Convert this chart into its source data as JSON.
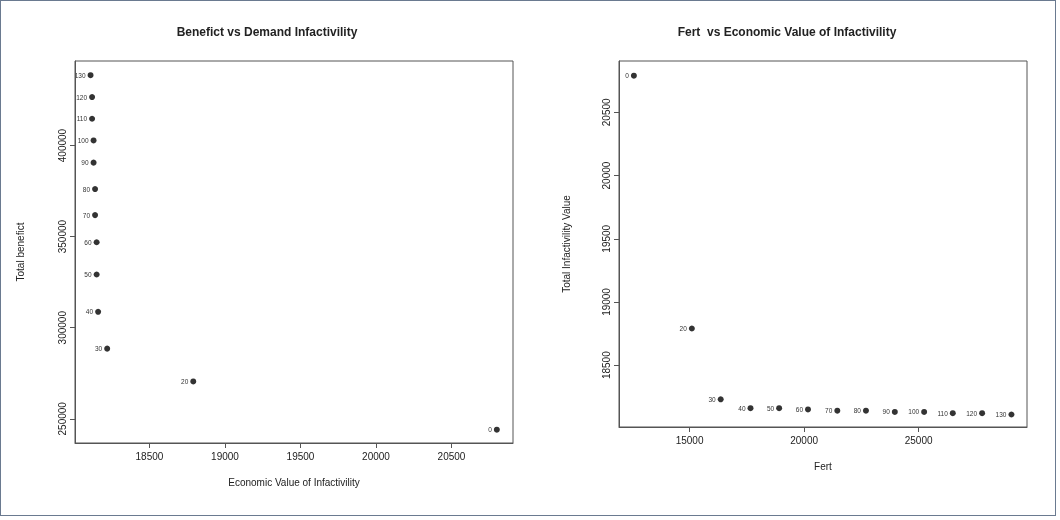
{
  "chart_data": [
    {
      "type": "scatter",
      "title": "Benefict vs Demand Infactivility",
      "xlabel": "Economic Value of Infactivility",
      "ylabel": "Total benefict",
      "x": [
        20800,
        18790,
        18220,
        18160,
        18150,
        18150,
        18140,
        18140,
        18130,
        18130,
        18120,
        18120,
        18110
      ],
      "series": [
        {
          "color": "#000000",
          "values": [
            244000,
            270500,
            288500,
            308700,
            329200,
            346900,
            361800,
            376100,
            390600,
            402800,
            414700,
            426600,
            438600
          ]
        }
      ],
      "annotations": [
        {
          "text": "0",
          "x": 20800,
          "y": 244000
        },
        {
          "text": "20",
          "x": 18790,
          "y": 270500
        },
        {
          "text": "30",
          "x": 18220,
          "y": 288500
        },
        {
          "text": "40",
          "x": 18160,
          "y": 308700
        },
        {
          "text": "50",
          "x": 18150,
          "y": 329200
        },
        {
          "text": "60",
          "x": 18150,
          "y": 346900
        },
        {
          "text": "70",
          "x": 18140,
          "y": 361800
        },
        {
          "text": "80",
          "x": 18140,
          "y": 376100
        },
        {
          "text": "90",
          "x": 18130,
          "y": 390600
        },
        {
          "text": "100",
          "x": 18130,
          "y": 402800
        },
        {
          "text": "110",
          "x": 18120,
          "y": 414700
        },
        {
          "text": "120",
          "x": 18120,
          "y": 426600
        },
        {
          "text": "130",
          "x": 18110,
          "y": 438600
        }
      ],
      "xlim": [
        18007,
        20907
      ],
      "xticks": [
        18500,
        19000,
        19500,
        20000,
        20500
      ],
      "ylim": [
        236700,
        446400
      ],
      "yticks": [
        250000,
        300000,
        350000,
        400000
      ],
      "marker": "circle"
    },
    {
      "type": "scatter",
      "title": "Fert  vs Economic Value of Infactivility",
      "xlabel": "Fert",
      "ylabel": "Total Infactivility Value",
      "x": [
        12570,
        15100,
        16360,
        17660,
        18910,
        20170,
        21450,
        22700,
        23960,
        25240,
        26490,
        27770,
        29050
      ],
      "series": [
        {
          "color": "#000000",
          "values": [
            20790,
            18790,
            18230,
            18160,
            18160,
            18150,
            18140,
            18140,
            18130,
            18130,
            18120,
            18120,
            18110
          ]
        }
      ],
      "annotations": [
        {
          "text": "0",
          "x": 12570,
          "y": 20790
        },
        {
          "text": "20",
          "x": 15100,
          "y": 18790
        },
        {
          "text": "30",
          "x": 16360,
          "y": 18230
        },
        {
          "text": "40",
          "x": 17660,
          "y": 18160
        },
        {
          "text": "50",
          "x": 18910,
          "y": 18160
        },
        {
          "text": "60",
          "x": 20170,
          "y": 18150
        },
        {
          "text": "70",
          "x": 21450,
          "y": 18140
        },
        {
          "text": "80",
          "x": 22700,
          "y": 18140
        },
        {
          "text": "90",
          "x": 23960,
          "y": 18130
        },
        {
          "text": "100",
          "x": 25240,
          "y": 18130
        },
        {
          "text": "110",
          "x": 26490,
          "y": 18120
        },
        {
          "text": "120",
          "x": 27770,
          "y": 18120
        },
        {
          "text": "130",
          "x": 29050,
          "y": 18110
        }
      ],
      "xlim": [
        11920,
        29730
      ],
      "xticks": [
        15000,
        20000,
        25000
      ],
      "ylim": [
        18011,
        20906
      ],
      "yticks": [
        18500,
        19000,
        19500,
        20000,
        20500
      ],
      "marker": "circle"
    }
  ]
}
